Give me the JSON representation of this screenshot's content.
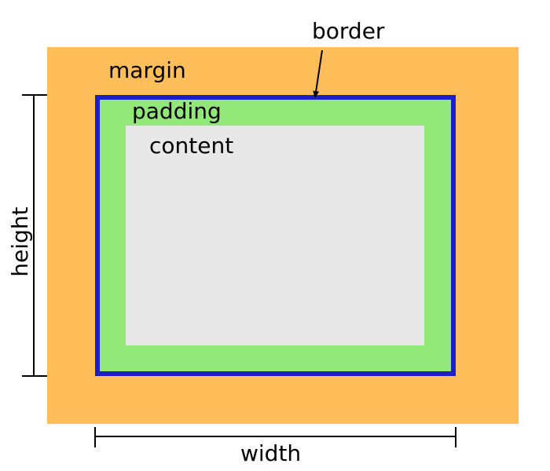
{
  "labels": {
    "margin": "margin",
    "border": "border",
    "padding": "padding",
    "content": "content",
    "width": "width",
    "height": "height"
  },
  "colors": {
    "margin": "#ffbe5a",
    "border": "#1e1ec8",
    "padding": "#91e878",
    "content": "#e8e8e8",
    "lines": "#000000"
  }
}
